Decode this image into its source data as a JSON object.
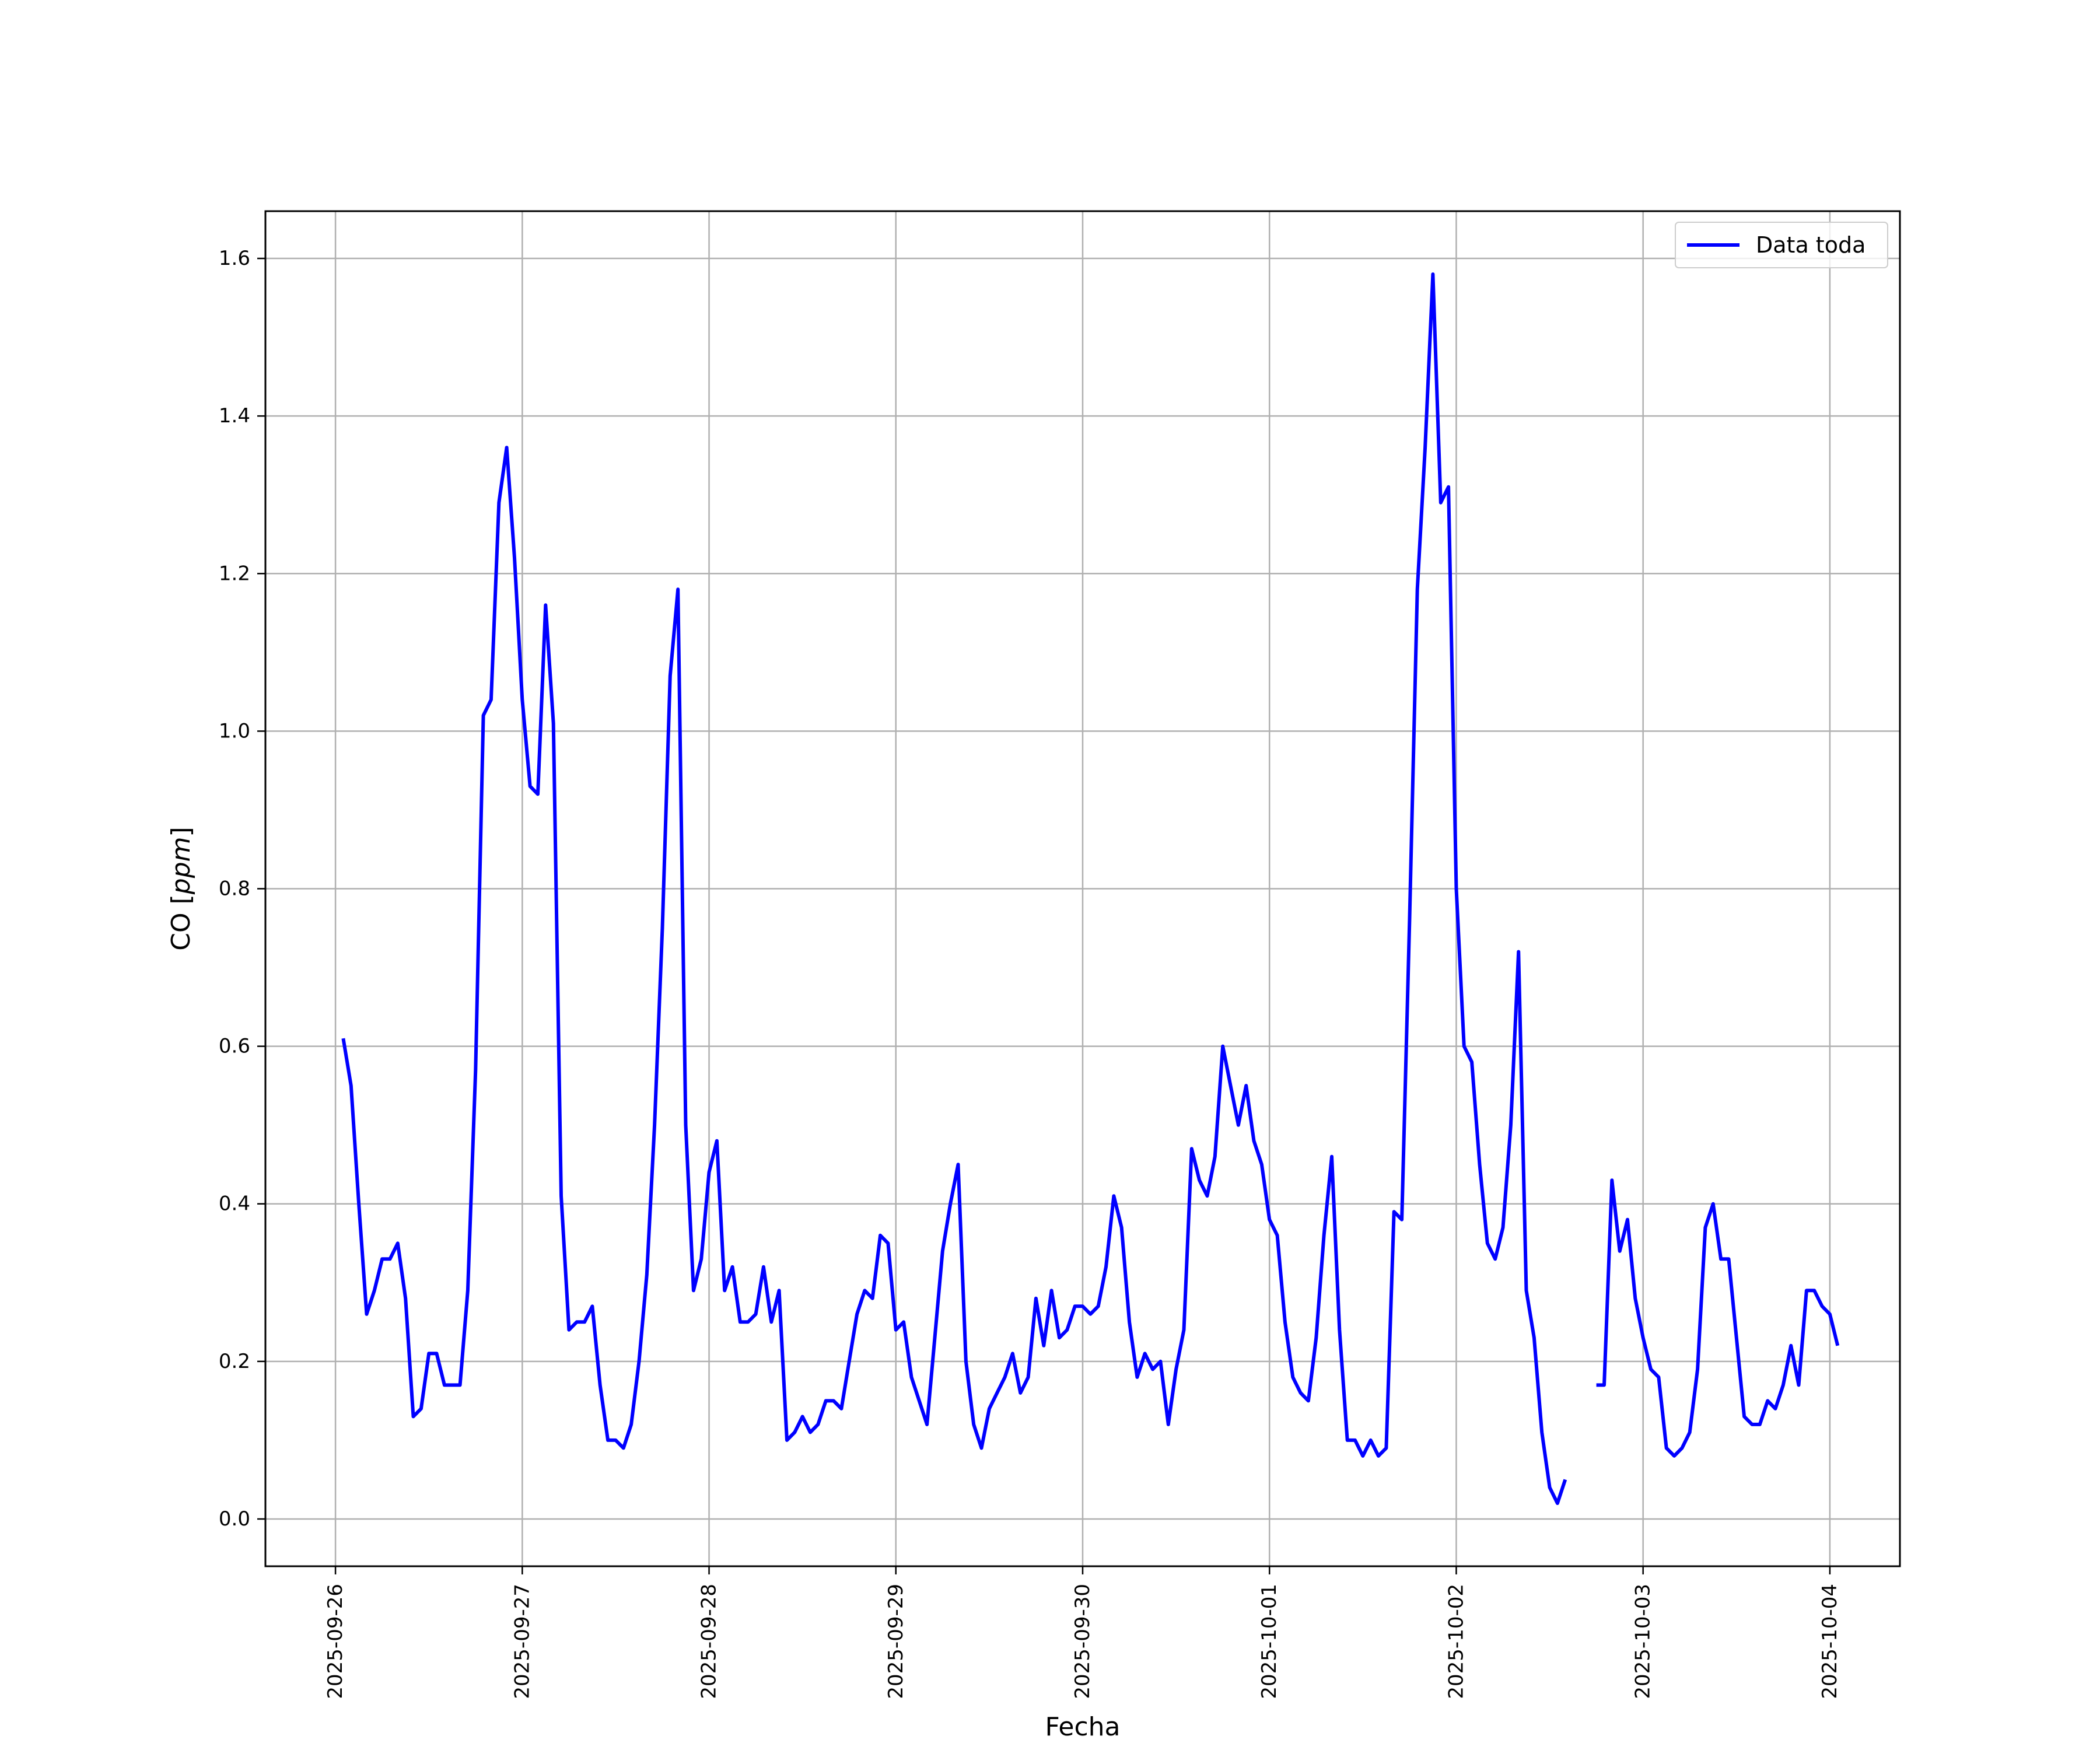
{
  "chart_data": {
    "type": "line",
    "xlabel": "Fecha",
    "ylabel_prefix": "CO [",
    "ylabel_unit": "ppm",
    "ylabel_suffix": "]",
    "grid": true,
    "legend_position": "top-right",
    "xlim": [
      "2025-09-25T15:00",
      "2025-10-04T09:00"
    ],
    "ylim": [
      -0.06,
      1.66
    ],
    "x_ticks": [
      "2025-09-26",
      "2025-09-27",
      "2025-09-28",
      "2025-09-29",
      "2025-09-30",
      "2025-10-01",
      "2025-10-02",
      "2025-10-03",
      "2025-10-04"
    ],
    "y_ticks": [
      "0.0",
      "0.2",
      "0.4",
      "0.6",
      "0.8",
      "1.0",
      "1.2",
      "1.4",
      "1.6"
    ],
    "series": [
      {
        "name": "Data toda",
        "color": "#0000ff",
        "start": "2025-09-26T01:00",
        "step_hours": 1,
        "values": [
          0.61,
          0.55,
          0.4,
          0.26,
          0.29,
          0.33,
          0.33,
          0.35,
          0.28,
          0.13,
          0.14,
          0.21,
          0.21,
          0.17,
          0.17,
          0.17,
          0.29,
          0.57,
          1.02,
          1.04,
          1.29,
          1.36,
          1.22,
          1.04,
          0.93,
          0.92,
          1.16,
          1.01,
          0.41,
          0.24,
          0.25,
          0.25,
          0.27,
          0.17,
          0.1,
          0.1,
          0.09,
          0.12,
          0.2,
          0.31,
          0.5,
          0.75,
          1.07,
          1.18,
          0.5,
          0.29,
          0.33,
          0.44,
          0.48,
          0.29,
          0.32,
          0.25,
          0.25,
          0.26,
          0.32,
          0.25,
          0.29,
          0.1,
          0.11,
          0.13,
          0.11,
          0.12,
          0.15,
          0.15,
          0.14,
          0.2,
          0.26,
          0.29,
          0.28,
          0.36,
          0.35,
          0.24,
          0.25,
          0.18,
          0.15,
          0.12,
          0.23,
          0.34,
          0.4,
          0.45,
          0.2,
          0.12,
          0.09,
          0.14,
          0.16,
          0.18,
          0.21,
          0.16,
          0.18,
          0.28,
          0.22,
          0.29,
          0.23,
          0.24,
          0.27,
          0.27,
          0.26,
          0.27,
          0.32,
          0.41,
          0.37,
          0.25,
          0.18,
          0.21,
          0.19,
          0.2,
          0.12,
          0.19,
          0.24,
          0.47,
          0.43,
          0.41,
          0.46,
          0.6,
          0.55,
          0.5,
          0.55,
          0.48,
          0.45,
          0.38,
          0.36,
          0.25,
          0.18,
          0.16,
          0.15,
          0.23,
          0.36,
          0.46,
          0.24,
          0.1,
          0.1,
          0.08,
          0.1,
          0.08,
          0.09,
          0.39,
          0.38,
          0.76,
          1.18,
          1.36,
          1.58,
          1.29,
          1.31,
          0.8,
          0.6,
          0.58,
          0.45,
          0.35,
          0.33,
          0.37,
          0.5,
          0.72,
          0.29,
          0.23,
          0.11,
          0.04,
          0.02,
          0.05,
          null,
          null,
          null,
          0.17,
          0.17,
          0.43,
          0.34,
          0.38,
          0.28,
          0.23,
          0.19,
          0.18,
          0.09,
          0.08,
          0.09,
          0.11,
          0.19,
          0.37,
          0.4,
          0.33,
          0.33,
          0.23,
          0.13,
          0.12,
          0.12,
          0.15,
          0.14,
          0.17,
          0.22,
          0.17,
          0.29,
          0.29,
          0.27,
          0.26,
          0.22
        ]
      }
    ]
  }
}
